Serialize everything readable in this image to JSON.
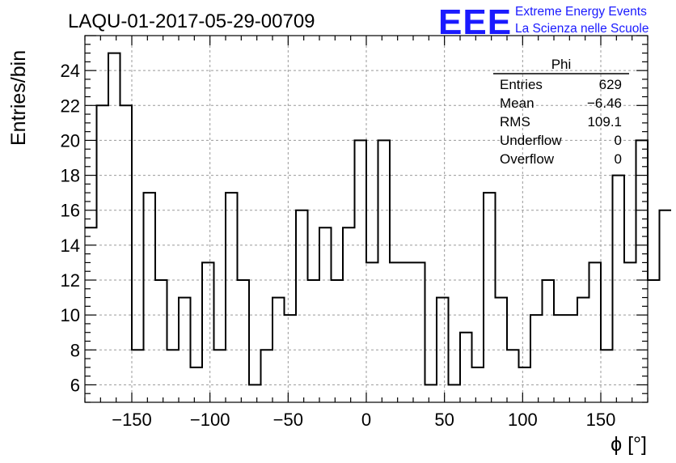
{
  "header": {
    "title": "LAQU-01-2017-05-29-00709",
    "logo_text": "EEE",
    "logo_line1": "Extreme Energy Events",
    "logo_line2": "La Scienza nelle Scuole",
    "logo_color": "#1a1aff"
  },
  "stats": {
    "title": "Phi",
    "rows": [
      {
        "label": "Entries",
        "value": "629"
      },
      {
        "label": "Mean",
        "value": "−6.46"
      },
      {
        "label": "RMS",
        "value": "109.1"
      },
      {
        "label": "Underflow",
        "value": "0"
      },
      {
        "label": "Overflow",
        "value": "0"
      }
    ]
  },
  "chart_data": {
    "type": "histogram",
    "title": "LAQU-01-2017-05-29-00709",
    "xlabel": "ϕ [°]",
    "ylabel": "Entries/bin",
    "xlim": [
      -180,
      180
    ],
    "ylim": [
      5,
      26
    ],
    "grid": true,
    "x_ticks": [
      -150,
      -100,
      -50,
      0,
      50,
      100,
      150
    ],
    "x_tick_labels": [
      "−150",
      "−100",
      "−50",
      "0",
      "50",
      "100",
      "150"
    ],
    "y_ticks": [
      6,
      8,
      10,
      12,
      14,
      16,
      18,
      20,
      22,
      24
    ],
    "y_tick_labels": [
      "6",
      "8",
      "10",
      "12",
      "14",
      "16",
      "18",
      "20",
      "22",
      "24"
    ],
    "bin_width": 7.5,
    "bin_edges_start": -180,
    "values": [
      15,
      22,
      25,
      22,
      8,
      17,
      12,
      8,
      11,
      7,
      13,
      8,
      17,
      12,
      6,
      8,
      11,
      10,
      16,
      12,
      15,
      12,
      15,
      20,
      13,
      20,
      13,
      13,
      13,
      6,
      11,
      6,
      9,
      7,
      17,
      11,
      8,
      7,
      10,
      12,
      10,
      10,
      11,
      13,
      8,
      18,
      13,
      20,
      12,
      16
    ],
    "line_color": "#000000"
  }
}
